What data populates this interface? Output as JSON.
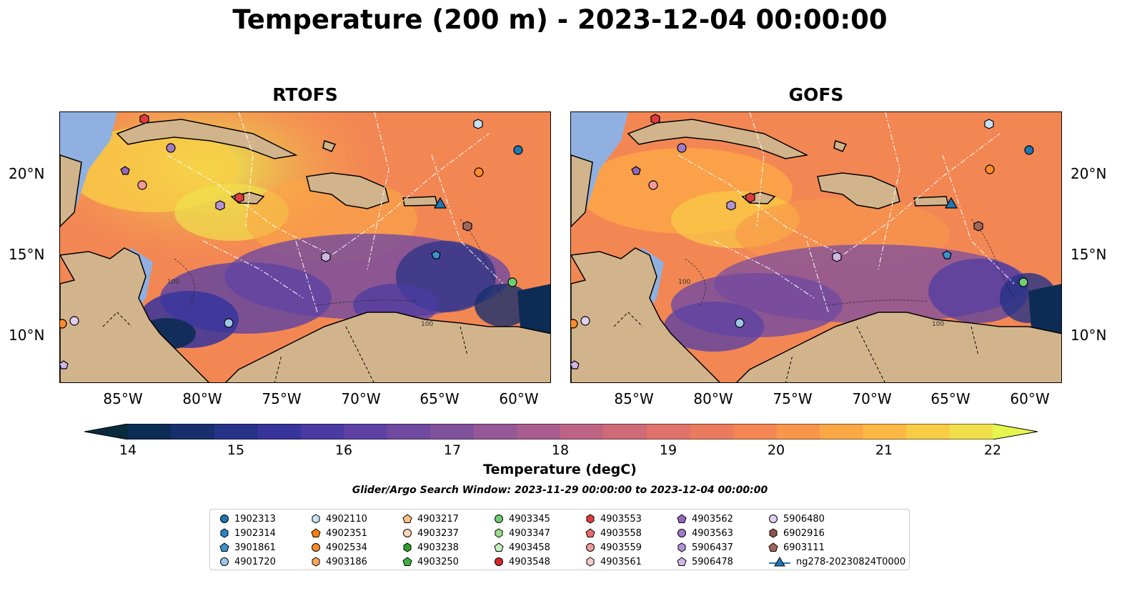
{
  "title": "Temperature (200 m) - 2023-12-04 00:00:00",
  "panels": [
    {
      "title": "RTOFS"
    },
    {
      "title": "GOFS"
    }
  ],
  "lon_ticks": [
    "85°W",
    "80°W",
    "75°W",
    "70°W",
    "65°W",
    "60°W"
  ],
  "lat_ticks": [
    "20°N",
    "15°N",
    "10°N"
  ],
  "colorbar": {
    "label": "Temperature (degC)",
    "ticks": [
      "14",
      "15",
      "16",
      "17",
      "18",
      "19",
      "20",
      "21",
      "22"
    ],
    "colors": [
      "#082a3d",
      "#0d2c55",
      "#182f6e",
      "#253287",
      "#37349c",
      "#4a3aa2",
      "#5d42a3",
      "#704aa0",
      "#82519b",
      "#965896",
      "#a95e8f",
      "#bd6484",
      "#cf6a77",
      "#df726a",
      "#ea7b5e",
      "#f38754",
      "#f9964b",
      "#fca746",
      "#fdb944",
      "#f9cc46",
      "#f0df4b",
      "#e6f54e"
    ]
  },
  "search_window": "Glider/Argo Search Window: 2023-11-29 00:00:00 to 2023-12-04 00:00:00",
  "legend": [
    {
      "label": "1902313",
      "marker": "circle",
      "color": "#1f77b4"
    },
    {
      "label": "1902314",
      "marker": "hexagon",
      "color": "#2b84c4"
    },
    {
      "label": "3901861",
      "marker": "pentagon",
      "color": "#3c92cf"
    },
    {
      "label": "4901720",
      "marker": "circle",
      "color": "#9ec6e6"
    },
    {
      "label": "4902110",
      "marker": "hexagon",
      "color": "#c6e0f5"
    },
    {
      "label": "4902351",
      "marker": "pentagon",
      "color": "#ff7f0e"
    },
    {
      "label": "4902534",
      "marker": "circle",
      "color": "#ff8c2a"
    },
    {
      "label": "4903186",
      "marker": "hexagon",
      "color": "#ffa55c"
    },
    {
      "label": "4903217",
      "marker": "pentagon",
      "color": "#ffbe86"
    },
    {
      "label": "4903237",
      "marker": "circle",
      "color": "#ffd8b8"
    },
    {
      "label": "4903238",
      "marker": "hexagon",
      "color": "#2ca02c"
    },
    {
      "label": "4903250",
      "marker": "pentagon",
      "color": "#3fb03f"
    },
    {
      "label": "4903345",
      "marker": "circle",
      "color": "#6fcf6f"
    },
    {
      "label": "4903347",
      "marker": "hexagon",
      "color": "#98df8a"
    },
    {
      "label": "4903458",
      "marker": "pentagon",
      "color": "#c7f0c0"
    },
    {
      "label": "4903548",
      "marker": "circle",
      "color": "#d62728"
    },
    {
      "label": "4903553",
      "marker": "hexagon",
      "color": "#e03c3d"
    },
    {
      "label": "4903558",
      "marker": "pentagon",
      "color": "#ea6b6b"
    },
    {
      "label": "4903559",
      "marker": "circle",
      "color": "#f29a9a"
    },
    {
      "label": "4903561",
      "marker": "hexagon",
      "color": "#f8c9c9"
    },
    {
      "label": "4903562",
      "marker": "pentagon",
      "color": "#9467bd"
    },
    {
      "label": "4903563",
      "marker": "circle",
      "color": "#a07cc8"
    },
    {
      "label": "5906437",
      "marker": "hexagon",
      "color": "#b294d6"
    },
    {
      "label": "5906478",
      "marker": "pentagon",
      "color": "#cdb7e6"
    },
    {
      "label": "5906480",
      "marker": "circle",
      "color": "#e0cff2"
    },
    {
      "label": "6902916",
      "marker": "hexagon",
      "color": "#8c564b"
    },
    {
      "label": "6903111",
      "marker": "pentagon",
      "color": "#a0685c"
    },
    {
      "label": "ng278-20230824T0000",
      "marker": "triangle-line",
      "color": "#1f77b4"
    }
  ],
  "contour_labels": [
    "100",
    "100",
    "100",
    "100"
  ]
}
